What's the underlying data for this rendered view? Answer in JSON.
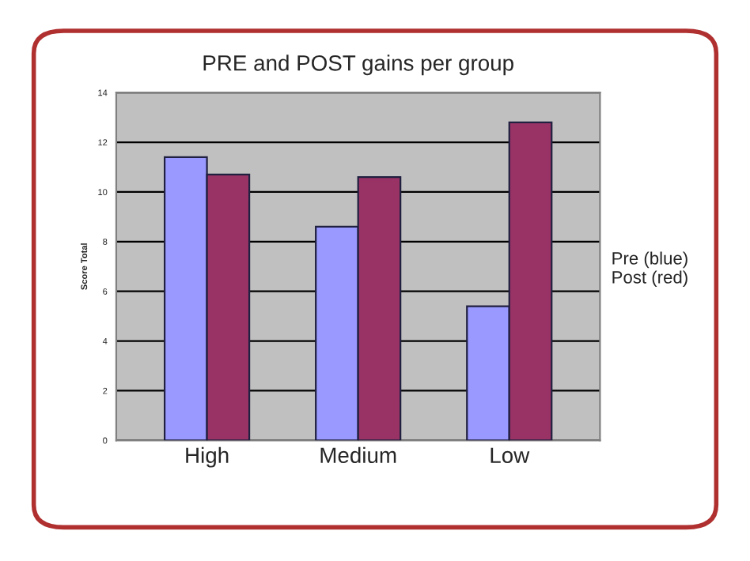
{
  "chart_data": {
    "type": "bar",
    "title": "PRE and POST gains per group",
    "ylabel": "Score Total",
    "categories": [
      "High",
      "Medium",
      "Low"
    ],
    "series": [
      {
        "color": "#9999ff",
        "values": [
          11.4,
          8.6,
          5.4
        ]
      },
      {
        "color": "#993366",
        "values": [
          10.7,
          10.6,
          12.8
        ]
      }
    ],
    "ylim": [
      0,
      14
    ],
    "yticks": [
      0,
      2,
      4,
      6,
      8,
      10,
      12,
      14
    ],
    "grid": "y",
    "annotations": [
      "Pre (blue)\nPost (red)"
    ]
  }
}
